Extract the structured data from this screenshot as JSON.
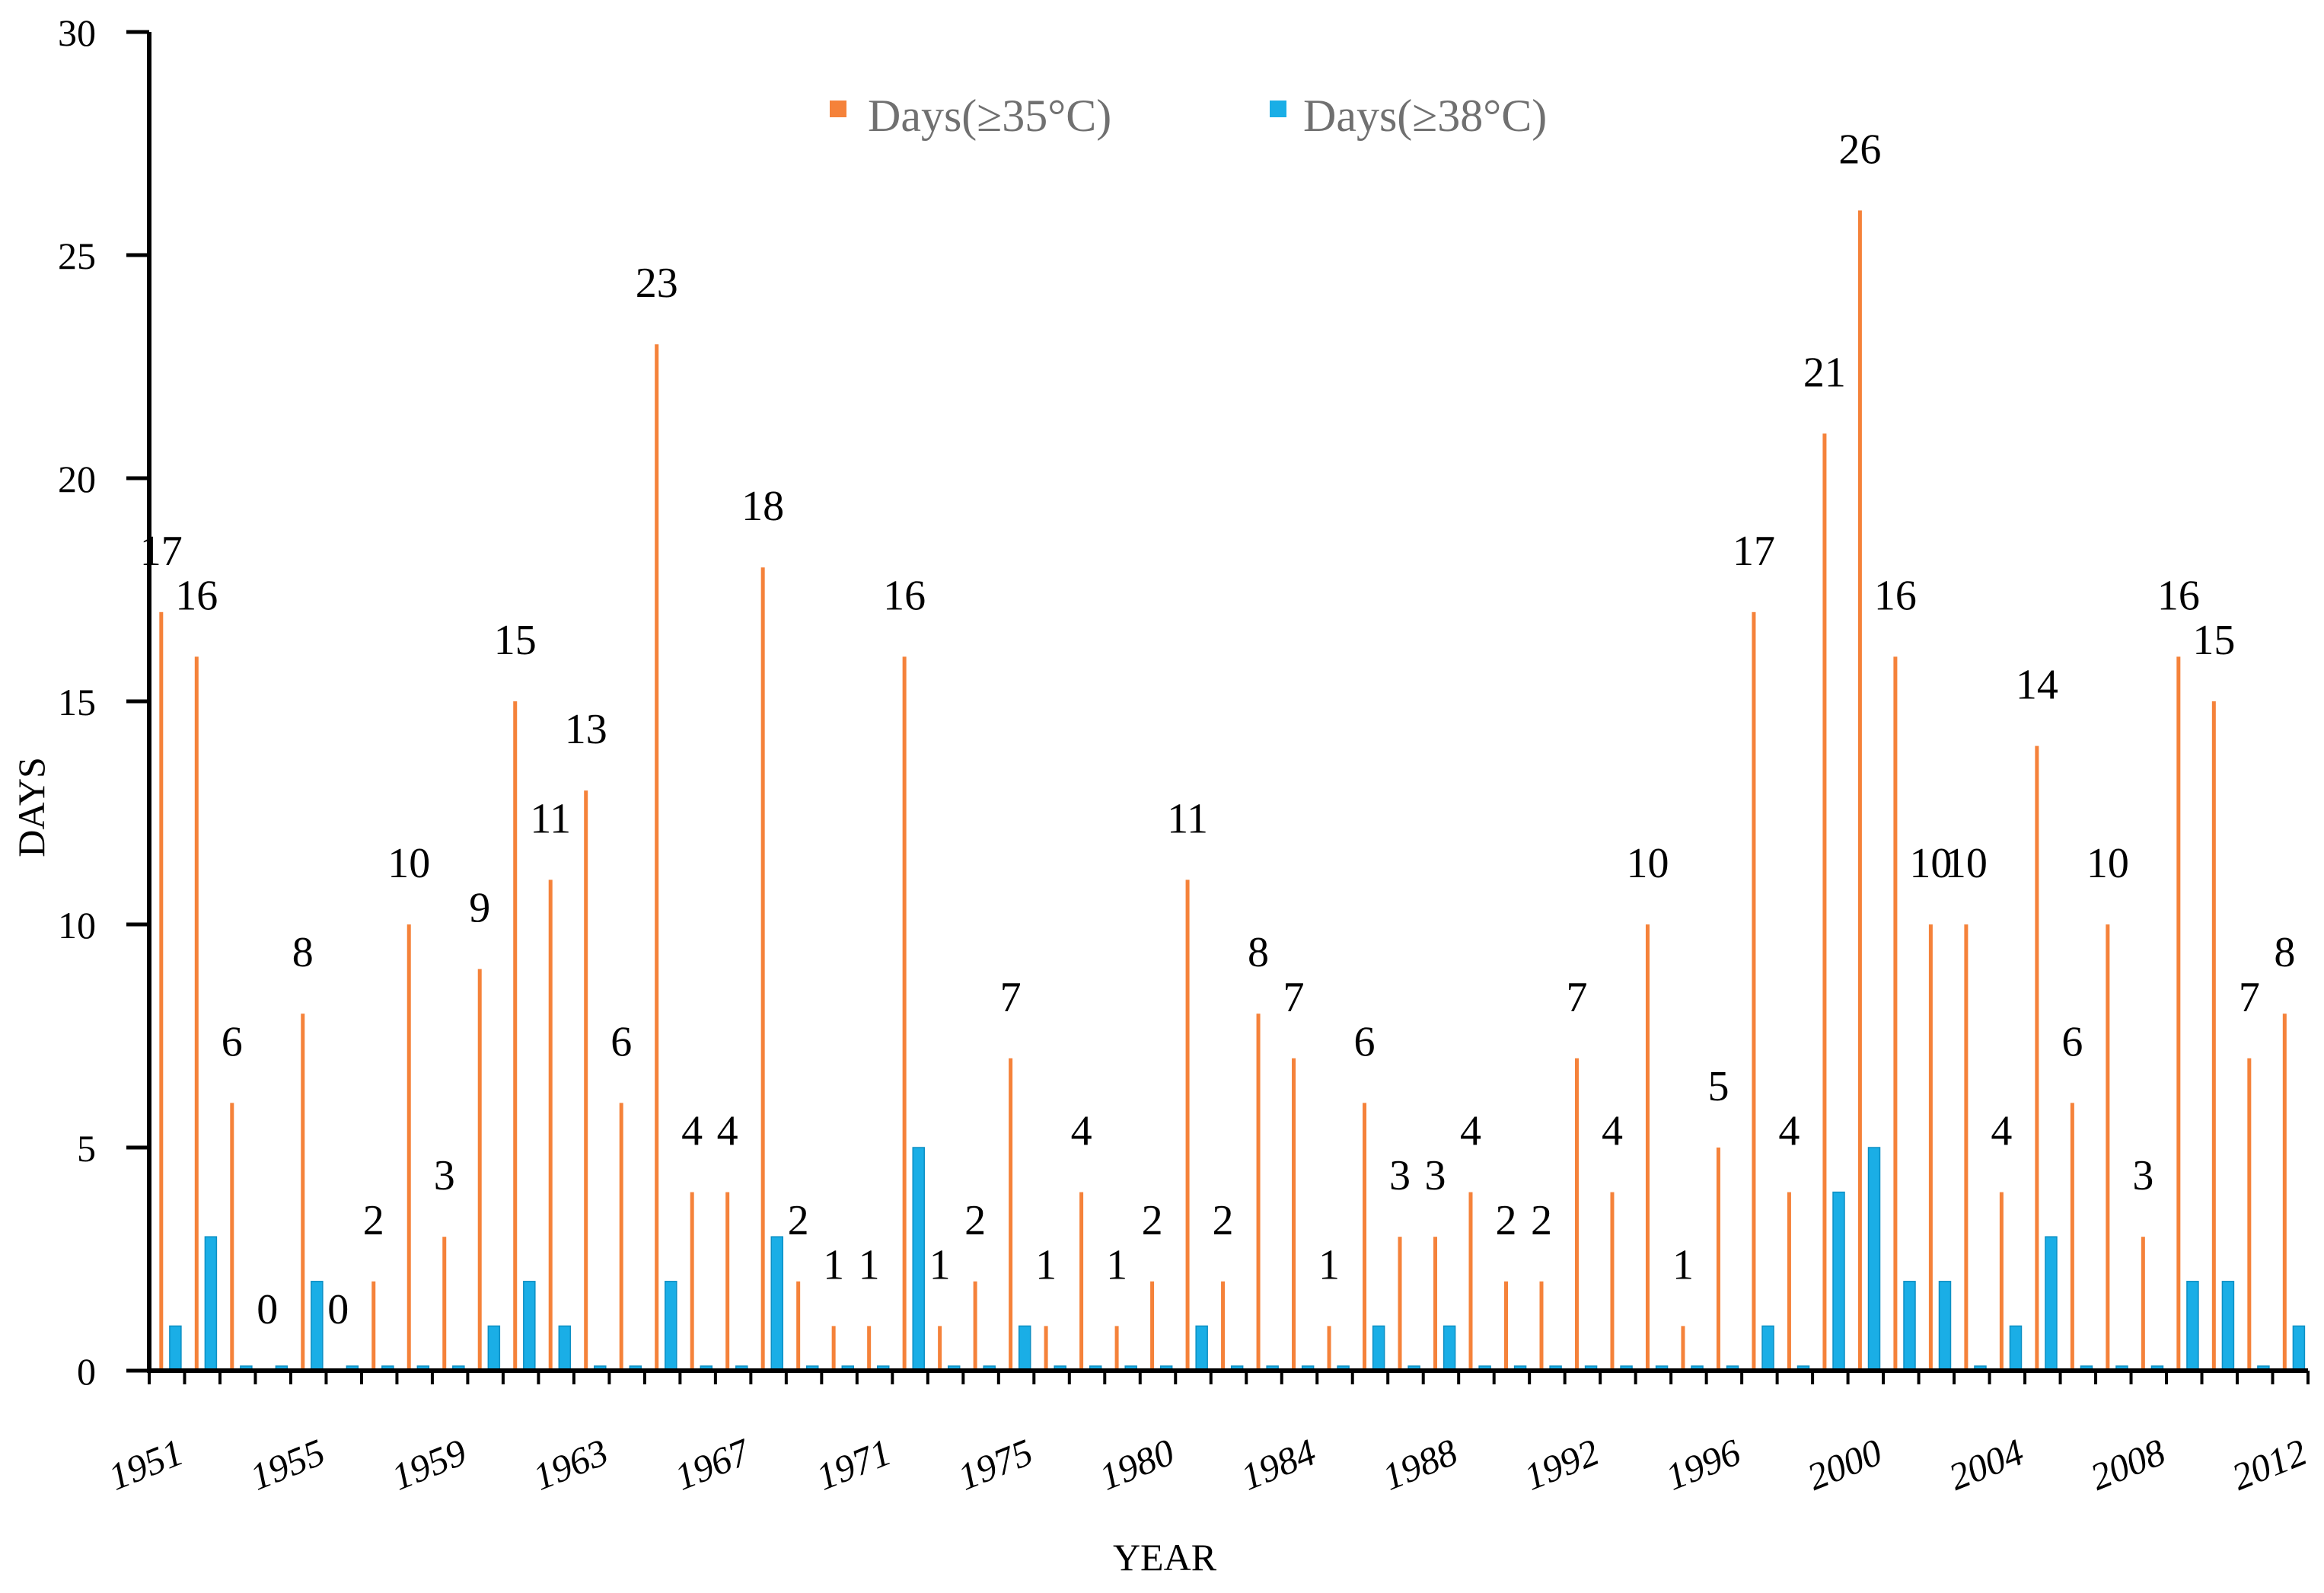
{
  "chart_data": {
    "type": "bar",
    "title": "",
    "xlabel": "YEAR",
    "ylabel": "DAYS",
    "ylim": [
      0,
      30
    ],
    "yticks": [
      0,
      5,
      10,
      15,
      20,
      25,
      30
    ],
    "grid": false,
    "legend_position": "top-center",
    "x_tick_labels": [
      "1951",
      "1955",
      "1959",
      "1963",
      "1967",
      "1971",
      "1975",
      "1980",
      "1984",
      "1988",
      "1992",
      "1996",
      "2000",
      "2004",
      "2008",
      "2012"
    ],
    "categories": [
      "1951",
      "1952",
      "1953",
      "1954",
      "1955",
      "1956",
      "1957",
      "1958",
      "1959",
      "1960",
      "1961",
      "1962",
      "1963",
      "1964",
      "1965",
      "1966",
      "1967",
      "1968",
      "1969",
      "1970",
      "1971",
      "1972",
      "1973",
      "1974",
      "1975",
      "1976",
      "1977",
      "1978",
      "1980",
      "1981",
      "1982",
      "1983",
      "1984",
      "1985",
      "1986",
      "1987",
      "1988",
      "1989",
      "1990",
      "1991",
      "1992",
      "1993",
      "1994",
      "1995",
      "1996",
      "1997",
      "1998",
      "1999",
      "2000",
      "2001",
      "2002",
      "2003",
      "2004",
      "2005",
      "2006",
      "2007",
      "2008",
      "2009",
      "2010",
      "2011",
      "2012"
    ],
    "series": [
      {
        "name": "Days(≥35°C)",
        "color": "#F5823A",
        "values": [
          17,
          16,
          6,
          0,
          8,
          0,
          2,
          10,
          3,
          9,
          15,
          11,
          13,
          6,
          23,
          4,
          4,
          18,
          2,
          1,
          1,
          16,
          1,
          2,
          7,
          1,
          4,
          1,
          2,
          11,
          2,
          8,
          7,
          1,
          6,
          3,
          3,
          4,
          2,
          2,
          7,
          4,
          10,
          1,
          5,
          17,
          4,
          21,
          26,
          16,
          10,
          10,
          4,
          14,
          6,
          10,
          3,
          16,
          15,
          7,
          8
        ],
        "data_labels": [
          "17",
          "16",
          "6",
          "0",
          "8",
          "0",
          "2",
          "10",
          "3",
          "9",
          "15",
          "11",
          "13",
          "6",
          "23",
          "4",
          "4",
          "18",
          "2",
          "1",
          "1",
          "16",
          "1",
          "2",
          "7",
          "1",
          "4",
          "1",
          "2",
          "11",
          "2",
          "8",
          "7",
          "1",
          "6",
          "3",
          "3",
          "4",
          "2",
          "2",
          "7",
          "4",
          "10",
          "1",
          "5",
          "17",
          "4",
          "21",
          "26",
          "16",
          "10",
          "10",
          "4",
          "14",
          "6",
          "10",
          "3",
          "16",
          "15",
          "7",
          "8"
        ]
      },
      {
        "name": "Days(≥38°C)",
        "color": "#1AAEE6",
        "values": [
          1,
          3,
          0,
          0,
          2,
          0,
          0,
          0,
          0,
          1,
          2,
          1,
          0,
          0,
          2,
          0,
          0,
          3,
          0,
          0,
          0,
          5,
          0,
          0,
          1,
          0,
          0,
          0,
          0,
          1,
          0,
          0,
          0,
          0,
          1,
          0,
          1,
          0,
          0,
          0,
          0,
          0,
          0,
          0,
          0,
          1,
          0,
          4,
          5,
          2,
          2,
          0,
          1,
          3,
          0,
          0,
          0,
          2,
          2,
          0,
          1
        ]
      }
    ]
  }
}
